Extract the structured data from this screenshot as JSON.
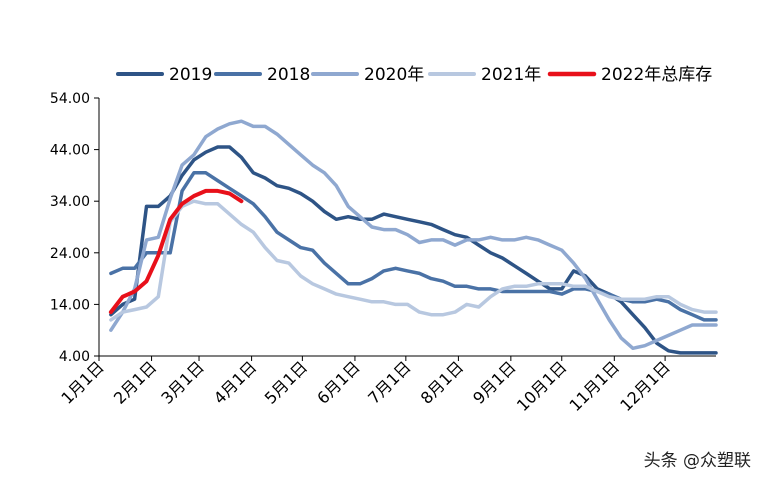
{
  "chart_data": {
    "type": "line",
    "title": "",
    "xlabel": "",
    "ylabel": "",
    "ylim": [
      4,
      54
    ],
    "yticks": [
      "4.00",
      "14.00",
      "24.00",
      "34.00",
      "44.00",
      "54.00"
    ],
    "xlim": [
      0,
      52
    ],
    "xticks": [
      {
        "label": "1月1日",
        "week": 0
      },
      {
        "label": "2月1日",
        "week": 4.43
      },
      {
        "label": "3月1日",
        "week": 8.43
      },
      {
        "label": "4月1日",
        "week": 12.86
      },
      {
        "label": "5月1日",
        "week": 17.14
      },
      {
        "label": "6月1日",
        "week": 21.57
      },
      {
        "label": "7月1日",
        "week": 25.86
      },
      {
        "label": "8月1日",
        "week": 30.29
      },
      {
        "label": "9月1日",
        "week": 34.71
      },
      {
        "label": "10月1日",
        "week": 39
      },
      {
        "label": "11月1日",
        "week": 43.43
      },
      {
        "label": "12月1日",
        "week": 47.71
      }
    ],
    "legend_position": "top",
    "series": [
      {
        "name": "2019",
        "color": "#2e5486",
        "width": 3.5,
        "x": [
          1,
          2,
          3,
          4,
          5,
          6,
          7,
          8,
          9,
          10,
          11,
          12,
          13,
          14,
          15,
          16,
          17,
          18,
          19,
          20,
          21,
          22,
          23,
          24,
          25,
          26,
          27,
          28,
          29,
          30,
          31,
          32,
          33,
          34,
          35,
          36,
          37,
          38,
          39,
          40,
          41,
          42,
          43,
          44,
          45,
          46,
          47,
          48,
          49,
          50,
          51,
          52
        ],
        "values": [
          12,
          14,
          15,
          33,
          33,
          35,
          39,
          42,
          43.5,
          44.5,
          44.5,
          42.5,
          39.5,
          38.5,
          37,
          36.5,
          35.5,
          34,
          32,
          30.5,
          31,
          30.5,
          30.5,
          31.5,
          31,
          30.5,
          30,
          29.5,
          28.5,
          27.5,
          27,
          25.5,
          24,
          23,
          21.5,
          20,
          18.5,
          17,
          17,
          20.5,
          19.5,
          17,
          16,
          14.5,
          12,
          9.5,
          6.5,
          5,
          4.6,
          4.6,
          4.6,
          4.6
        ]
      },
      {
        "name": "2018",
        "color": "#4a72a6",
        "width": 3.5,
        "x": [
          1,
          2,
          3,
          4,
          5,
          6,
          7,
          8,
          9,
          10,
          11,
          12,
          13,
          14,
          15,
          16,
          17,
          18,
          19,
          20,
          21,
          22,
          23,
          24,
          25,
          26,
          27,
          28,
          29,
          30,
          31,
          32,
          33,
          34,
          35,
          36,
          37,
          38,
          39,
          40,
          41,
          42,
          43,
          44,
          45,
          46,
          47,
          48,
          49,
          50,
          51,
          52
        ],
        "values": [
          20,
          21,
          21,
          24,
          24,
          24,
          36,
          39.5,
          39.5,
          38,
          36.5,
          35,
          33.5,
          31,
          28,
          26.5,
          25,
          24.5,
          22,
          20,
          18,
          18,
          19,
          20.5,
          21,
          20.5,
          20,
          19,
          18.5,
          17.5,
          17.5,
          17,
          17,
          16.5,
          16.5,
          16.5,
          16.5,
          16.5,
          16,
          17,
          17,
          16.5,
          16,
          15,
          14.5,
          14.5,
          15,
          14.5,
          13,
          12,
          11,
          11
        ]
      },
      {
        "name": "2020年",
        "color": "#8fa8d0",
        "width": 3.5,
        "x": [
          1,
          2,
          3,
          4,
          5,
          6,
          7,
          8,
          9,
          10,
          11,
          12,
          13,
          14,
          15,
          16,
          17,
          18,
          19,
          20,
          21,
          22,
          23,
          24,
          25,
          26,
          27,
          28,
          29,
          30,
          31,
          32,
          33,
          34,
          35,
          36,
          37,
          38,
          39,
          40,
          41,
          42,
          43,
          44,
          45,
          46,
          47,
          48,
          49,
          50,
          51,
          52
        ],
        "values": [
          9,
          12.5,
          17,
          26.5,
          27,
          34.5,
          41,
          43,
          46.5,
          48,
          49,
          49.5,
          48.5,
          48.5,
          47,
          45,
          43,
          41,
          39.5,
          37,
          33,
          31,
          29,
          28.5,
          28.5,
          27.5,
          26,
          26.5,
          26.5,
          25.5,
          26.5,
          26.5,
          27,
          26.5,
          26.5,
          27,
          26.5,
          25.5,
          24.5,
          22,
          19,
          15,
          11,
          7.5,
          5.5,
          6,
          7,
          8,
          9,
          10,
          10,
          10
        ]
      },
      {
        "name": "2021年",
        "color": "#b8c8e0",
        "width": 3.5,
        "x": [
          1,
          2,
          3,
          4,
          5,
          6,
          7,
          8,
          9,
          10,
          11,
          12,
          13,
          14,
          15,
          16,
          17,
          18,
          19,
          20,
          21,
          22,
          23,
          24,
          25,
          26,
          27,
          28,
          29,
          30,
          31,
          32,
          33,
          34,
          35,
          36,
          37,
          38,
          39,
          40,
          41,
          42,
          43,
          44,
          45,
          46,
          47,
          48,
          49,
          50,
          51,
          52
        ],
        "values": [
          11,
          12.5,
          13,
          13.5,
          15.5,
          30,
          33,
          34,
          33.5,
          33.5,
          31.5,
          29.5,
          28,
          25,
          22.5,
          22,
          19.5,
          18,
          17,
          16,
          15.5,
          15,
          14.5,
          14.5,
          14,
          14,
          12.5,
          12,
          12,
          12.5,
          14,
          13.5,
          15.5,
          17,
          17.5,
          17.5,
          18,
          18,
          18,
          17.5,
          17.5,
          16.5,
          15.5,
          15,
          15,
          15,
          15.5,
          15.5,
          14,
          13,
          12.5,
          12.5
        ]
      },
      {
        "name": "2022年总库存",
        "color": "#e8101a",
        "width": 4,
        "x": [
          1,
          2,
          3,
          4,
          5,
          6,
          7,
          8,
          9,
          10,
          11,
          12
        ],
        "values": [
          12.5,
          15.5,
          16.5,
          18.5,
          23.5,
          30.5,
          33.5,
          35,
          36,
          36,
          35.5,
          34
        ]
      }
    ]
  },
  "watermark": "头条 @众塑联"
}
